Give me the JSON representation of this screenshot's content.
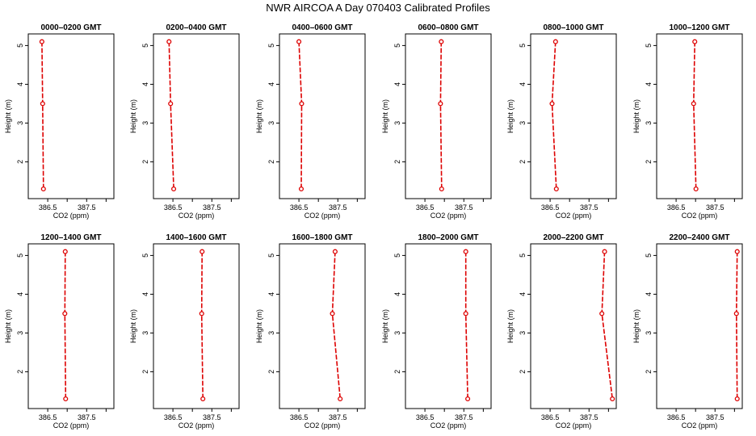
{
  "title": "NWR AIRCOA A  Day 070403  Calibrated Profiles",
  "chart_data": [
    {
      "type": "line",
      "title": "0000–0200 GMT",
      "xlabel": "CO2 (ppm)",
      "ylabel": "Height (m)",
      "xlim": [
        386.0,
        388.2
      ],
      "ylim": [
        1.05,
        5.3
      ],
      "x_ticks": [
        386.5,
        387.0,
        387.5,
        388.0
      ],
      "x_tick_labels": [
        "386.5",
        "",
        "387.5",
        ""
      ],
      "y_ticks": [
        2,
        3,
        4,
        5
      ],
      "series": [
        {
          "x": [
            386.35,
            386.37,
            386.39
          ],
          "y": [
            5.1,
            3.5,
            1.3
          ]
        }
      ]
    },
    {
      "type": "line",
      "title": "0200–0400 GMT",
      "xlabel": "CO2 (ppm)",
      "ylabel": "Height (m)",
      "xlim": [
        386.0,
        388.2
      ],
      "ylim": [
        1.05,
        5.3
      ],
      "x_ticks": [
        386.5,
        387.0,
        387.5,
        388.0
      ],
      "x_tick_labels": [
        "386.5",
        "",
        "387.5",
        ""
      ],
      "y_ticks": [
        2,
        3,
        4,
        5
      ],
      "series": [
        {
          "x": [
            386.4,
            386.44,
            386.52
          ],
          "y": [
            5.1,
            3.5,
            1.3
          ]
        }
      ]
    },
    {
      "type": "line",
      "title": "0400–0600 GMT",
      "xlabel": "CO2 (ppm)",
      "ylabel": "Height (m)",
      "xlim": [
        386.0,
        388.2
      ],
      "ylim": [
        1.05,
        5.3
      ],
      "x_ticks": [
        386.5,
        387.0,
        387.5,
        388.0
      ],
      "x_tick_labels": [
        "386.5",
        "",
        "387.5",
        ""
      ],
      "y_ticks": [
        2,
        3,
        4,
        5
      ],
      "series": [
        {
          "x": [
            386.5,
            386.57,
            386.56
          ],
          "y": [
            5.1,
            3.5,
            1.3
          ]
        }
      ]
    },
    {
      "type": "line",
      "title": "0600–0800 GMT",
      "xlabel": "CO2 (ppm)",
      "ylabel": "Height (m)",
      "xlim": [
        386.0,
        388.2
      ],
      "ylim": [
        1.05,
        5.3
      ],
      "x_ticks": [
        386.5,
        387.0,
        387.5,
        388.0
      ],
      "x_tick_labels": [
        "386.5",
        "",
        "387.5",
        ""
      ],
      "y_ticks": [
        2,
        3,
        4,
        5
      ],
      "series": [
        {
          "x": [
            386.92,
            386.9,
            386.93
          ],
          "y": [
            5.1,
            3.5,
            1.3
          ]
        }
      ]
    },
    {
      "type": "line",
      "title": "0800–1000 GMT",
      "xlabel": "CO2 (ppm)",
      "ylabel": "Height (m)",
      "xlim": [
        386.0,
        388.2
      ],
      "ylim": [
        1.05,
        5.3
      ],
      "x_ticks": [
        386.5,
        387.0,
        387.5,
        388.0
      ],
      "x_tick_labels": [
        "386.5",
        "",
        "387.5",
        ""
      ],
      "y_ticks": [
        2,
        3,
        4,
        5
      ],
      "series": [
        {
          "x": [
            386.64,
            386.55,
            386.66
          ],
          "y": [
            5.1,
            3.5,
            1.3
          ]
        }
      ]
    },
    {
      "type": "line",
      "title": "1000–1200 GMT",
      "xlabel": "CO2 (ppm)",
      "ylabel": "Height (m)",
      "xlim": [
        386.0,
        388.2
      ],
      "ylim": [
        1.05,
        5.3
      ],
      "x_ticks": [
        386.5,
        387.0,
        387.5,
        388.0
      ],
      "x_tick_labels": [
        "386.5",
        "",
        "387.5",
        ""
      ],
      "y_ticks": [
        2,
        3,
        4,
        5
      ],
      "series": [
        {
          "x": [
            386.98,
            386.95,
            387.01
          ],
          "y": [
            5.1,
            3.5,
            1.3
          ]
        }
      ]
    },
    {
      "type": "line",
      "title": "1200–1400 GMT",
      "xlabel": "CO2 (ppm)",
      "ylabel": "Height (m)",
      "xlim": [
        386.0,
        388.2
      ],
      "ylim": [
        1.05,
        5.3
      ],
      "x_ticks": [
        386.5,
        387.0,
        387.5,
        388.0
      ],
      "x_tick_labels": [
        "386.5",
        "",
        "387.5",
        ""
      ],
      "y_ticks": [
        2,
        3,
        4,
        5
      ],
      "series": [
        {
          "x": [
            386.95,
            386.94,
            386.96
          ],
          "y": [
            5.1,
            3.5,
            1.3
          ]
        }
      ]
    },
    {
      "type": "line",
      "title": "1400–1600 GMT",
      "xlabel": "CO2 (ppm)",
      "ylabel": "Height (m)",
      "xlim": [
        386.0,
        388.2
      ],
      "ylim": [
        1.05,
        5.3
      ],
      "x_ticks": [
        386.5,
        387.0,
        387.5,
        388.0
      ],
      "x_tick_labels": [
        "386.5",
        "",
        "387.5",
        ""
      ],
      "y_ticks": [
        2,
        3,
        4,
        5
      ],
      "series": [
        {
          "x": [
            387.25,
            387.24,
            387.27
          ],
          "y": [
            5.1,
            3.5,
            1.3
          ]
        }
      ]
    },
    {
      "type": "line",
      "title": "1600–1800 GMT",
      "xlabel": "CO2 (ppm)",
      "ylabel": "Height (m)",
      "xlim": [
        386.0,
        388.2
      ],
      "ylim": [
        1.05,
        5.3
      ],
      "x_ticks": [
        386.5,
        387.0,
        387.5,
        388.0
      ],
      "x_tick_labels": [
        "386.5",
        "",
        "387.5",
        ""
      ],
      "y_ticks": [
        2,
        3,
        4,
        5
      ],
      "series": [
        {
          "x": [
            387.43,
            387.36,
            387.56
          ],
          "y": [
            5.1,
            3.5,
            1.3
          ]
        }
      ]
    },
    {
      "type": "line",
      "title": "1800–2000 GMT",
      "xlabel": "CO2 (ppm)",
      "ylabel": "Height (m)",
      "xlim": [
        386.0,
        388.2
      ],
      "ylim": [
        1.05,
        5.3
      ],
      "x_ticks": [
        386.5,
        387.0,
        387.5,
        388.0
      ],
      "x_tick_labels": [
        "386.5",
        "",
        "387.5",
        ""
      ],
      "y_ticks": [
        2,
        3,
        4,
        5
      ],
      "series": [
        {
          "x": [
            387.55,
            387.55,
            387.6
          ],
          "y": [
            5.1,
            3.5,
            1.3
          ]
        }
      ]
    },
    {
      "type": "line",
      "title": "2000–2200 GMT",
      "xlabel": "CO2 (ppm)",
      "ylabel": "Height (m)",
      "xlim": [
        386.0,
        388.2
      ],
      "ylim": [
        1.05,
        5.3
      ],
      "x_ticks": [
        386.5,
        387.0,
        387.5,
        388.0
      ],
      "x_tick_labels": [
        "386.5",
        "",
        "387.5",
        ""
      ],
      "y_ticks": [
        2,
        3,
        4,
        5
      ],
      "series": [
        {
          "x": [
            387.9,
            387.83,
            388.1
          ],
          "y": [
            5.1,
            3.5,
            1.3
          ]
        }
      ]
    },
    {
      "type": "line",
      "title": "2200–2400 GMT",
      "xlabel": "CO2 (ppm)",
      "ylabel": "Height (m)",
      "xlim": [
        386.0,
        388.2
      ],
      "ylim": [
        1.05,
        5.3
      ],
      "x_ticks": [
        386.5,
        387.0,
        387.5,
        388.0
      ],
      "x_tick_labels": [
        "386.5",
        "",
        "387.5",
        ""
      ],
      "y_ticks": [
        2,
        3,
        4,
        5
      ],
      "series": [
        {
          "x": [
            388.07,
            388.05,
            388.07
          ],
          "y": [
            5.1,
            3.5,
            1.3
          ]
        }
      ]
    }
  ]
}
